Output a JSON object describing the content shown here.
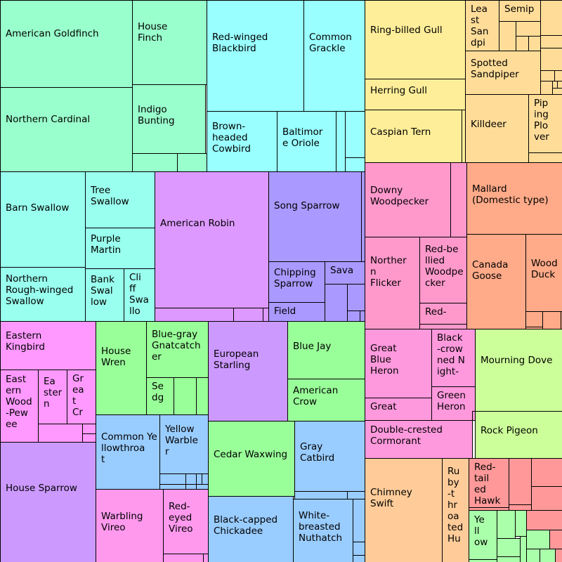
{
  "chart_data": {
    "type": "treemap",
    "title": "",
    "groups": [
      {
        "name": "",
        "color": "#99ffcc",
        "items": [
          {
            "label": "American Goldfinch",
            "value": 23000
          },
          {
            "label": "Northern Cardinal",
            "value": 22700
          },
          {
            "label": "House\nFinch",
            "value": 12600
          },
          {
            "label": "Indigo\nBunting",
            "value": 10200
          }
        ]
      },
      {
        "name": "",
        "color": "#99ffff",
        "items": [
          {
            "label": "Red-winged\nBlackbird",
            "value": 21800
          },
          {
            "label": "Common\nGrackle",
            "value": 13700
          },
          {
            "label": "Brown-\nheaded\nCowbird",
            "value": 8400
          },
          {
            "label": "Baltimor\ne Oriole",
            "value": 6900
          }
        ]
      },
      {
        "name": "",
        "color": "#99ffee",
        "items": [
          {
            "label": "Barn Swallow",
            "value": 16300
          },
          {
            "label": "Tree\nSwallow",
            "value": 7800
          },
          {
            "label": "Purple\nMartin",
            "value": 5600
          },
          {
            "label": "Northern\nRough-winged\nSwallow",
            "value": 9500
          },
          {
            "label": "Bank\nSwal\nlow",
            "value": 4200
          },
          {
            "label": "Cli\nff\nSwa\nllo",
            "value": 3400
          }
        ]
      },
      {
        "name": "",
        "color": "#dd99ff",
        "items": [
          {
            "label": "American Robin",
            "value": 30700
          }
        ]
      },
      {
        "name": "",
        "color": "#aa99ff",
        "items": [
          {
            "label": "Song Sparrow",
            "value": 20000
          },
          {
            "label": "Chipping\nSparrow",
            "value": 4600
          },
          {
            "label": "Sava",
            "value": 2400
          },
          {
            "label": "Field",
            "value": 2000
          }
        ]
      },
      {
        "name": "",
        "color": "#ffee99",
        "items": [
          {
            "label": "Ring-billed Gull",
            "value": 17400
          },
          {
            "label": "Herring Gull",
            "value": 6000
          },
          {
            "label": "Caspian Tern",
            "value": 11100
          }
        ]
      },
      {
        "name": "",
        "color": "#ffdd99",
        "items": [
          {
            "label": "Lea\nst\nSan\ndpi",
            "value": 3100
          },
          {
            "label": "Semip",
            "value": 1700
          },
          {
            "label": "Spotted\nSandpiper",
            "value": 6600
          },
          {
            "label": "Killdeer",
            "value": 8800
          },
          {
            "label": "Pip\ning\nPlo\nver",
            "value": 3100
          }
        ]
      },
      {
        "name": "",
        "color": "#ff99cc",
        "items": [
          {
            "label": "Downy\nWoodpecker",
            "value": 12300
          },
          {
            "label": "Norther\nn\nFlicker",
            "value": 9900
          },
          {
            "label": "Red-be\nllied\nWoodpe\ncker",
            "value": 5800
          },
          {
            "label": "Red-",
            "value": 1800
          }
        ]
      },
      {
        "name": "",
        "color": "#ffaa88",
        "items": [
          {
            "label": "Mallard\n(Domestic type)",
            "value": 13700
          },
          {
            "label": "Canada\nGoose",
            "value": 11700
          },
          {
            "label": "Wood\nDuck",
            "value": 5300
          }
        ]
      },
      {
        "name": "",
        "color": "#ff99ff",
        "items": [
          {
            "label": "Eastern\nKingbird",
            "value": 9000
          },
          {
            "label": "East\nern\nWood\n-Pew\nee",
            "value": 5500
          },
          {
            "label": "Ea\nster\nn",
            "value": 3100
          },
          {
            "label": "Gr\nea\nt\nCr",
            "value": 2600
          }
        ]
      },
      {
        "name": "",
        "color": "#99ff99",
        "items": [
          {
            "label": "House\nWren",
            "value": 8700
          },
          {
            "label": "Blue-gray\nGnatcatch\ner",
            "value": 6800
          },
          {
            "label": "Se\ndg",
            "value": 2000
          },
          {
            "label": "Cedar Waxwing",
            "value": 13000
          },
          {
            "label": "Blue Jay",
            "value": 7800
          },
          {
            "label": "American\nCrow",
            "value": 6500
          }
        ]
      },
      {
        "name": "",
        "color": "#cc99ff",
        "items": [
          {
            "label": "European\nStarling",
            "value": 12100
          },
          {
            "label": "House Sparrow",
            "value": 15300
          }
        ]
      },
      {
        "name": "",
        "color": "#99ccff",
        "items": [
          {
            "label": "Common Ye\nllowthroa\nt",
            "value": 7900
          },
          {
            "label": "Yellow\nWarble\nr",
            "value": 5600
          },
          {
            "label": "Gray\nCatbird",
            "value": 9900
          },
          {
            "label": "Black-capped\nChickadee",
            "value": 11300
          },
          {
            "label": "White-\nbreasted\nNuthatch",
            "value": 7300
          }
        ]
      },
      {
        "name": "",
        "color": "#ff99ee",
        "items": [
          {
            "label": "Warbling\nVireo",
            "value": 8300
          },
          {
            "label": "Red-\neyed\nVireo",
            "value": 5300
          }
        ]
      },
      {
        "name": "",
        "color": "#ff99dd",
        "items": [
          {
            "label": "Great\nBlue\nHeron",
            "value": 9200
          },
          {
            "label": "Great",
            "value": 2900
          },
          {
            "label": "Black\n-crow\nned N\night-",
            "value": 5100
          },
          {
            "label": "Green\nHeron",
            "value": 3200
          },
          {
            "label": "Double-crested\nCormorant",
            "value": 9800
          }
        ]
      },
      {
        "name": "",
        "color": "#ccff99",
        "items": [
          {
            "label": "Mourning Dove",
            "value": 15600
          },
          {
            "label": "Rock Pigeon",
            "value": 8000
          }
        ]
      },
      {
        "name": "",
        "color": "#ffcc99",
        "items": [
          {
            "label": "Chimney\nSwift",
            "value": 16700
          },
          {
            "label": "Ru\nby\n-t\nhr\noa\nted\nHu",
            "value": 5500
          }
        ]
      },
      {
        "name": "",
        "color": "#ff9999",
        "items": [
          {
            "label": "Red-\ntail\ned\nHawk",
            "value": 4000
          }
        ]
      },
      {
        "name": "",
        "color": "#aaffaa",
        "items": [
          {
            "label": "Ye\nll\now",
            "value": 2800
          }
        ]
      }
    ]
  }
}
